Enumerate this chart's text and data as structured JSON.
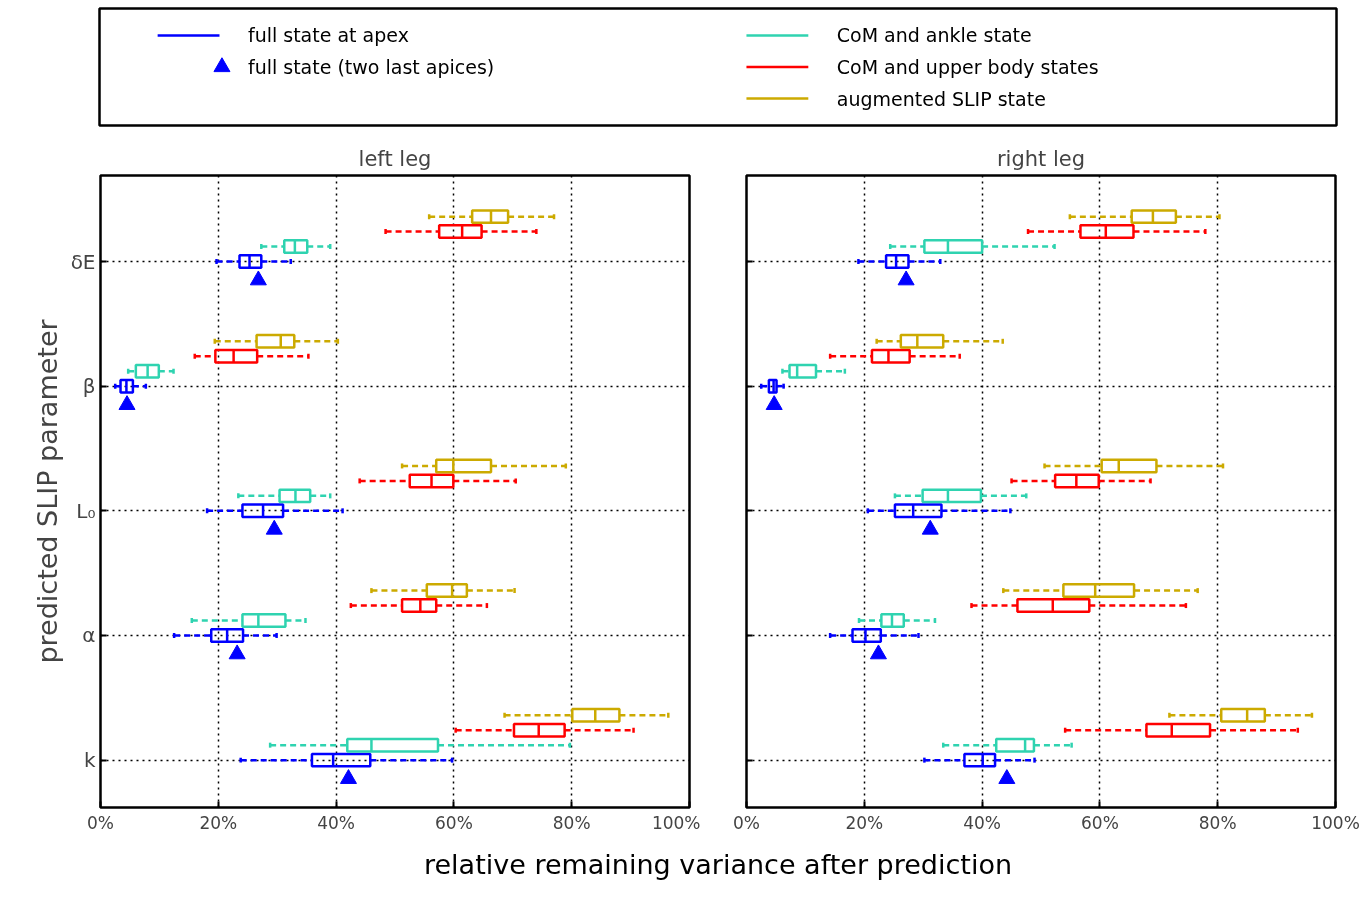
{
  "chart_data": [
    {
      "type": "box",
      "orientation": "horizontal",
      "title": "left leg",
      "ylabel": "predicted SLIP parameter",
      "xlabel": "relative remaining variance after prediction",
      "categories": [
        "δE",
        "β",
        "L₀",
        "α",
        "k"
      ],
      "xlim": [
        0,
        100
      ],
      "xticks": [
        {
          "value": 0,
          "label": "0%"
        },
        {
          "value": 20,
          "label": "20%"
        },
        {
          "value": 40,
          "label": "40%"
        },
        {
          "value": 60,
          "label": "60%"
        },
        {
          "value": 80,
          "label": "80%"
        },
        {
          "value": 100,
          "label": "100%"
        }
      ],
      "grid": true,
      "legend": "top",
      "line_style": "dashed",
      "series": [
        {
          "type": "box",
          "name": "full state at apex",
          "color": "#0000ff",
          "boxes": [
            {
              "low": 19.7,
              "q1": 23.6,
              "median": 25.3,
              "q3": 27.3,
              "high": 32.3
            },
            {
              "low": 2.5,
              "q1": 3.4,
              "median": 4.4,
              "q3": 5.5,
              "high": 7.7
            },
            {
              "low": 18.1,
              "q1": 24.1,
              "median": 27.6,
              "q3": 31.0,
              "high": 41.1
            },
            {
              "low": 12.5,
              "q1": 18.8,
              "median": 21.5,
              "q3": 24.2,
              "high": 29.9
            },
            {
              "low": 23.8,
              "q1": 35.9,
              "median": 39.5,
              "q3": 45.8,
              "high": 59.7
            }
          ]
        },
        {
          "type": "scatter",
          "name": "full state (two last apices)",
          "color": "#0000ff",
          "marker": "triangle",
          "values": [
            26.8,
            4.5,
            29.5,
            23.2,
            42.1
          ]
        },
        {
          "type": "box",
          "name": "CoM and ankle state",
          "color": "#2fd3b0",
          "boxes": [
            {
              "low": 27.3,
              "q1": 31.2,
              "median": 33.0,
              "q3": 35.1,
              "high": 39.0
            },
            {
              "low": 4.7,
              "q1": 6.0,
              "median": 8.0,
              "q3": 9.9,
              "high": 12.4
            },
            {
              "low": 23.4,
              "q1": 30.4,
              "median": 33.1,
              "q3": 35.6,
              "high": 39.0
            },
            {
              "low": 15.5,
              "q1": 24.1,
              "median": 26.8,
              "q3": 31.4,
              "high": 34.8
            },
            {
              "low": 28.8,
              "q1": 41.9,
              "median": 46.0,
              "q3": 57.3,
              "high": 79.7
            }
          ]
        },
        {
          "type": "box",
          "name": "CoM and upper body states",
          "color": "#ff0000",
          "boxes": [
            {
              "low": 48.4,
              "q1": 57.5,
              "median": 61.4,
              "q3": 64.7,
              "high": 74.0
            },
            {
              "low": 16.0,
              "q1": 19.5,
              "median": 22.6,
              "q3": 26.6,
              "high": 35.3
            },
            {
              "low": 44.0,
              "q1": 52.5,
              "median": 56.2,
              "q3": 59.9,
              "high": 70.5
            },
            {
              "low": 42.5,
              "q1": 51.2,
              "median": 54.3,
              "q3": 57.0,
              "high": 65.6
            },
            {
              "low": 60.3,
              "q1": 70.2,
              "median": 74.4,
              "q3": 78.8,
              "high": 90.5
            }
          ]
        },
        {
          "type": "box",
          "name": "augmented SLIP state",
          "color": "#ccaa00",
          "boxes": [
            {
              "low": 55.8,
              "q1": 63.1,
              "median": 66.3,
              "q3": 69.2,
              "high": 77.0
            },
            {
              "low": 19.4,
              "q1": 26.5,
              "median": 30.6,
              "q3": 32.9,
              "high": 40.3
            },
            {
              "low": 51.2,
              "q1": 57.0,
              "median": 59.9,
              "q3": 66.3,
              "high": 79.0
            },
            {
              "low": 46.0,
              "q1": 55.4,
              "median": 59.7,
              "q3": 62.2,
              "high": 70.3
            },
            {
              "low": 68.6,
              "q1": 80.1,
              "median": 84.0,
              "q3": 88.1,
              "high": 96.4
            }
          ]
        }
      ]
    },
    {
      "type": "box",
      "orientation": "horizontal",
      "title": "right leg",
      "categories": [
        null,
        null,
        null,
        null,
        null
      ],
      "xlim": [
        0,
        100
      ],
      "xticks": [
        {
          "value": 0,
          "label": "0%"
        },
        {
          "value": 20,
          "label": "20%"
        },
        {
          "value": 40,
          "label": "40%"
        },
        {
          "value": 60,
          "label": "60%"
        },
        {
          "value": 80,
          "label": "80%"
        },
        {
          "value": 100,
          "label": "100%"
        }
      ],
      "grid": true,
      "tick_labels": "x",
      "line_style": "dashed",
      "series": [
        {
          "type": "box",
          "color": "#0000ff",
          "boxes": [
            {
              "low": 19.0,
              "q1": 23.7,
              "median": 25.4,
              "q3": 27.5,
              "high": 32.9
            },
            {
              "low": 2.5,
              "q1": 3.8,
              "median": 4.6,
              "q3": 5.1,
              "high": 6.3
            },
            {
              "low": 20.6,
              "q1": 25.2,
              "median": 28.3,
              "q3": 33.1,
              "high": 44.8
            },
            {
              "low": 14.2,
              "q1": 18.0,
              "median": 20.2,
              "q3": 22.8,
              "high": 29.2
            },
            {
              "low": 30.2,
              "q1": 37.0,
              "median": 40.1,
              "q3": 42.2,
              "high": 48.9
            }
          ]
        },
        {
          "type": "scatter",
          "color": "#0000ff",
          "marker": "triangle",
          "values": [
            27.1,
            4.7,
            31.2,
            22.4,
            44.2
          ]
        },
        {
          "type": "box",
          "color": "#2fd3b0",
          "boxes": [
            {
              "low": 24.4,
              "q1": 30.2,
              "median": 34.2,
              "q3": 40.0,
              "high": 52.3
            },
            {
              "low": 6.1,
              "q1": 7.3,
              "median": 8.6,
              "q3": 11.8,
              "high": 16.7
            },
            {
              "low": 25.2,
              "q1": 29.9,
              "median": 34.2,
              "q3": 39.8,
              "high": 47.5
            },
            {
              "low": 19.1,
              "q1": 22.9,
              "median": 24.7,
              "q3": 26.7,
              "high": 32.0
            },
            {
              "low": 33.4,
              "q1": 42.4,
              "median": 47.3,
              "q3": 48.8,
              "high": 55.2
            }
          ]
        },
        {
          "type": "box",
          "color": "#ff0000",
          "boxes": [
            {
              "low": 47.8,
              "q1": 56.7,
              "median": 61.0,
              "q3": 65.7,
              "high": 77.9
            },
            {
              "low": 14.2,
              "q1": 21.3,
              "median": 24.1,
              "q3": 27.7,
              "high": 36.2
            },
            {
              "low": 45.0,
              "q1": 52.4,
              "median": 56.0,
              "q3": 59.8,
              "high": 68.6
            },
            {
              "low": 38.2,
              "q1": 46.0,
              "median": 52.0,
              "q3": 58.2,
              "high": 74.6
            },
            {
              "low": 54.1,
              "q1": 67.9,
              "median": 72.2,
              "q3": 78.7,
              "high": 93.6
            }
          ]
        },
        {
          "type": "box",
          "color": "#ccaa00",
          "boxes": [
            {
              "low": 54.9,
              "q1": 65.4,
              "median": 69.0,
              "q3": 72.9,
              "high": 80.3
            },
            {
              "low": 22.1,
              "q1": 26.2,
              "median": 29.0,
              "q3": 33.4,
              "high": 43.5
            },
            {
              "low": 50.6,
              "q1": 60.3,
              "median": 63.2,
              "q3": 69.6,
              "high": 80.9
            },
            {
              "low": 43.6,
              "q1": 53.8,
              "median": 59.2,
              "q3": 65.8,
              "high": 76.6
            },
            {
              "low": 71.8,
              "q1": 80.6,
              "median": 85.0,
              "q3": 88.0,
              "high": 96.0
            }
          ]
        }
      ]
    }
  ]
}
